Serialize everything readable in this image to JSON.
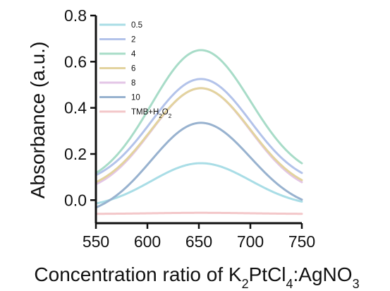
{
  "chart_data": {
    "type": "line",
    "xlabel": {
      "main": "Concentration ratio of K",
      "sub1": "2",
      "mid1": "PtCl",
      "sub2": "4",
      "mid2": ":AgNO",
      "sub3": "3"
    },
    "ylabel": "Absorbance (a.u.)",
    "xlim": [
      550,
      750
    ],
    "ylim": [
      -0.1,
      0.8
    ],
    "xticks": [
      "550",
      "600",
      "650",
      "700",
      "750"
    ],
    "yticks": [
      "0.0",
      "0.2",
      "0.4",
      "0.6",
      "0.8"
    ],
    "xtick_values": [
      550,
      600,
      650,
      700,
      750
    ],
    "ytick_values": [
      0.0,
      0.2,
      0.4,
      0.6,
      0.8
    ],
    "legend_position": "top-left",
    "series": [
      {
        "name": "0.5",
        "color": "#a9dde6",
        "peak_x": 652,
        "peak_y": 0.16,
        "ends": [
          -0.035,
          -0.03
        ],
        "sigma": 48
      },
      {
        "name": "2",
        "color": "#b3c3ea",
        "peak_x": 652,
        "peak_y": 0.525,
        "ends": [
          0.06,
          0.06
        ],
        "sigma": 48
      },
      {
        "name": "4",
        "color": "#a8dcc8",
        "peak_x": 652,
        "peak_y": 0.65,
        "ends": [
          0.055,
          0.09
        ],
        "sigma": 48
      },
      {
        "name": "6",
        "color": "#e3d39e",
        "peak_x": 652,
        "peak_y": 0.485,
        "ends": [
          0.03,
          0.03
        ],
        "sigma": 48
      },
      {
        "name": "8",
        "color": "#e3c5e6",
        "peak_x": 652,
        "peak_y": 0.485,
        "ends": [
          0.02,
          0.02
        ],
        "sigma": 48
      },
      {
        "name": "10",
        "color": "#98b2cf",
        "peak_x": 652,
        "peak_y": 0.335,
        "ends": [
          -0.075,
          -0.045
        ],
        "sigma": 48
      },
      {
        "name": "TMB+H2O2",
        "label_main": "TMB+H",
        "label_sub1": "2",
        "label_mid": "O",
        "label_sub2": "2",
        "color": "#f3c7c9",
        "peak_x": 652,
        "peak_y": -0.055,
        "ends": [
          -0.06,
          -0.06
        ],
        "sigma": 48
      }
    ]
  }
}
